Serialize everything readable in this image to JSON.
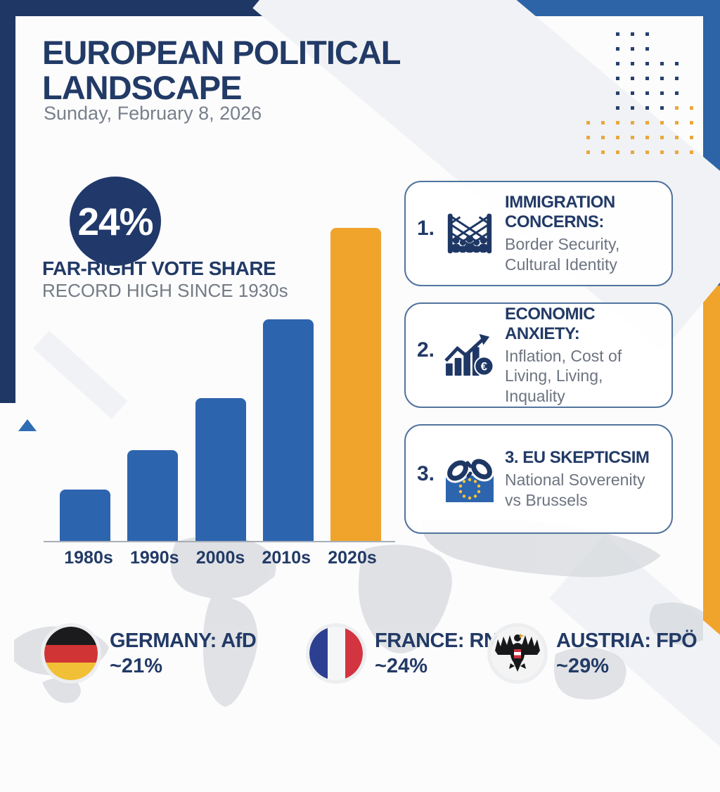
{
  "header": {
    "title_line1": "EUROPEAN POLITICAL",
    "title_line2": "LANDSCAPE",
    "date": "Sunday, February 8, 2026"
  },
  "stat": {
    "value": "24%",
    "label": "FAR-RIGHT VOTE SHARE",
    "sublabel": "RECORD HIGH SINCE 1930s"
  },
  "chart_data": {
    "type": "bar",
    "title": "Far-right vote share by decade",
    "categories": [
      "1980s",
      "1990s",
      "2000s",
      "2010s",
      "2020s"
    ],
    "values": [
      4,
      7,
      11,
      17,
      24
    ],
    "unit": "%",
    "xlabel": "",
    "ylabel": "",
    "ylim": [
      0,
      24
    ],
    "grid": false,
    "highlight_index": 4,
    "bar_color": "#2d64ae",
    "highlight_color": "#f0a42c"
  },
  "factors": [
    {
      "number": "1.",
      "icon": "border-fence-crowd-icon",
      "title": "IMMIGRATION CONCERNS:",
      "description": "Border Security, Cultural Identity"
    },
    {
      "number": "2.",
      "icon": "rising-chart-euro-icon",
      "title": "ECONOMIC ANXIETY:",
      "description": "Inflation, Cost of Living, Living, Inquality"
    },
    {
      "number": "3.",
      "icon": "eu-flag-broken-chain-icon",
      "title": "3. EU SKEPTICSIM",
      "description": "National Soverenity vs Brussels"
    }
  ],
  "countries": [
    {
      "flag": "germany-flag-icon",
      "name": "GERMANY: AfD",
      "share": "~21%"
    },
    {
      "flag": "france-flag-icon",
      "name": "FRANCE: RN",
      "share": "~24%"
    },
    {
      "flag": "austria-flag-icon",
      "name": "AUSTRIA: FPÖ",
      "share": "~29%"
    }
  ],
  "icons": {
    "euro_symbol": "€"
  },
  "colors": {
    "navy": "#1e3765",
    "blue": "#2d64ae",
    "bright_blue": "#2d64a8",
    "orange": "#f0a42c",
    "gray_text": "#6d7480",
    "dot_navy": "#27406e",
    "dot_orange": "#e9a83c"
  }
}
